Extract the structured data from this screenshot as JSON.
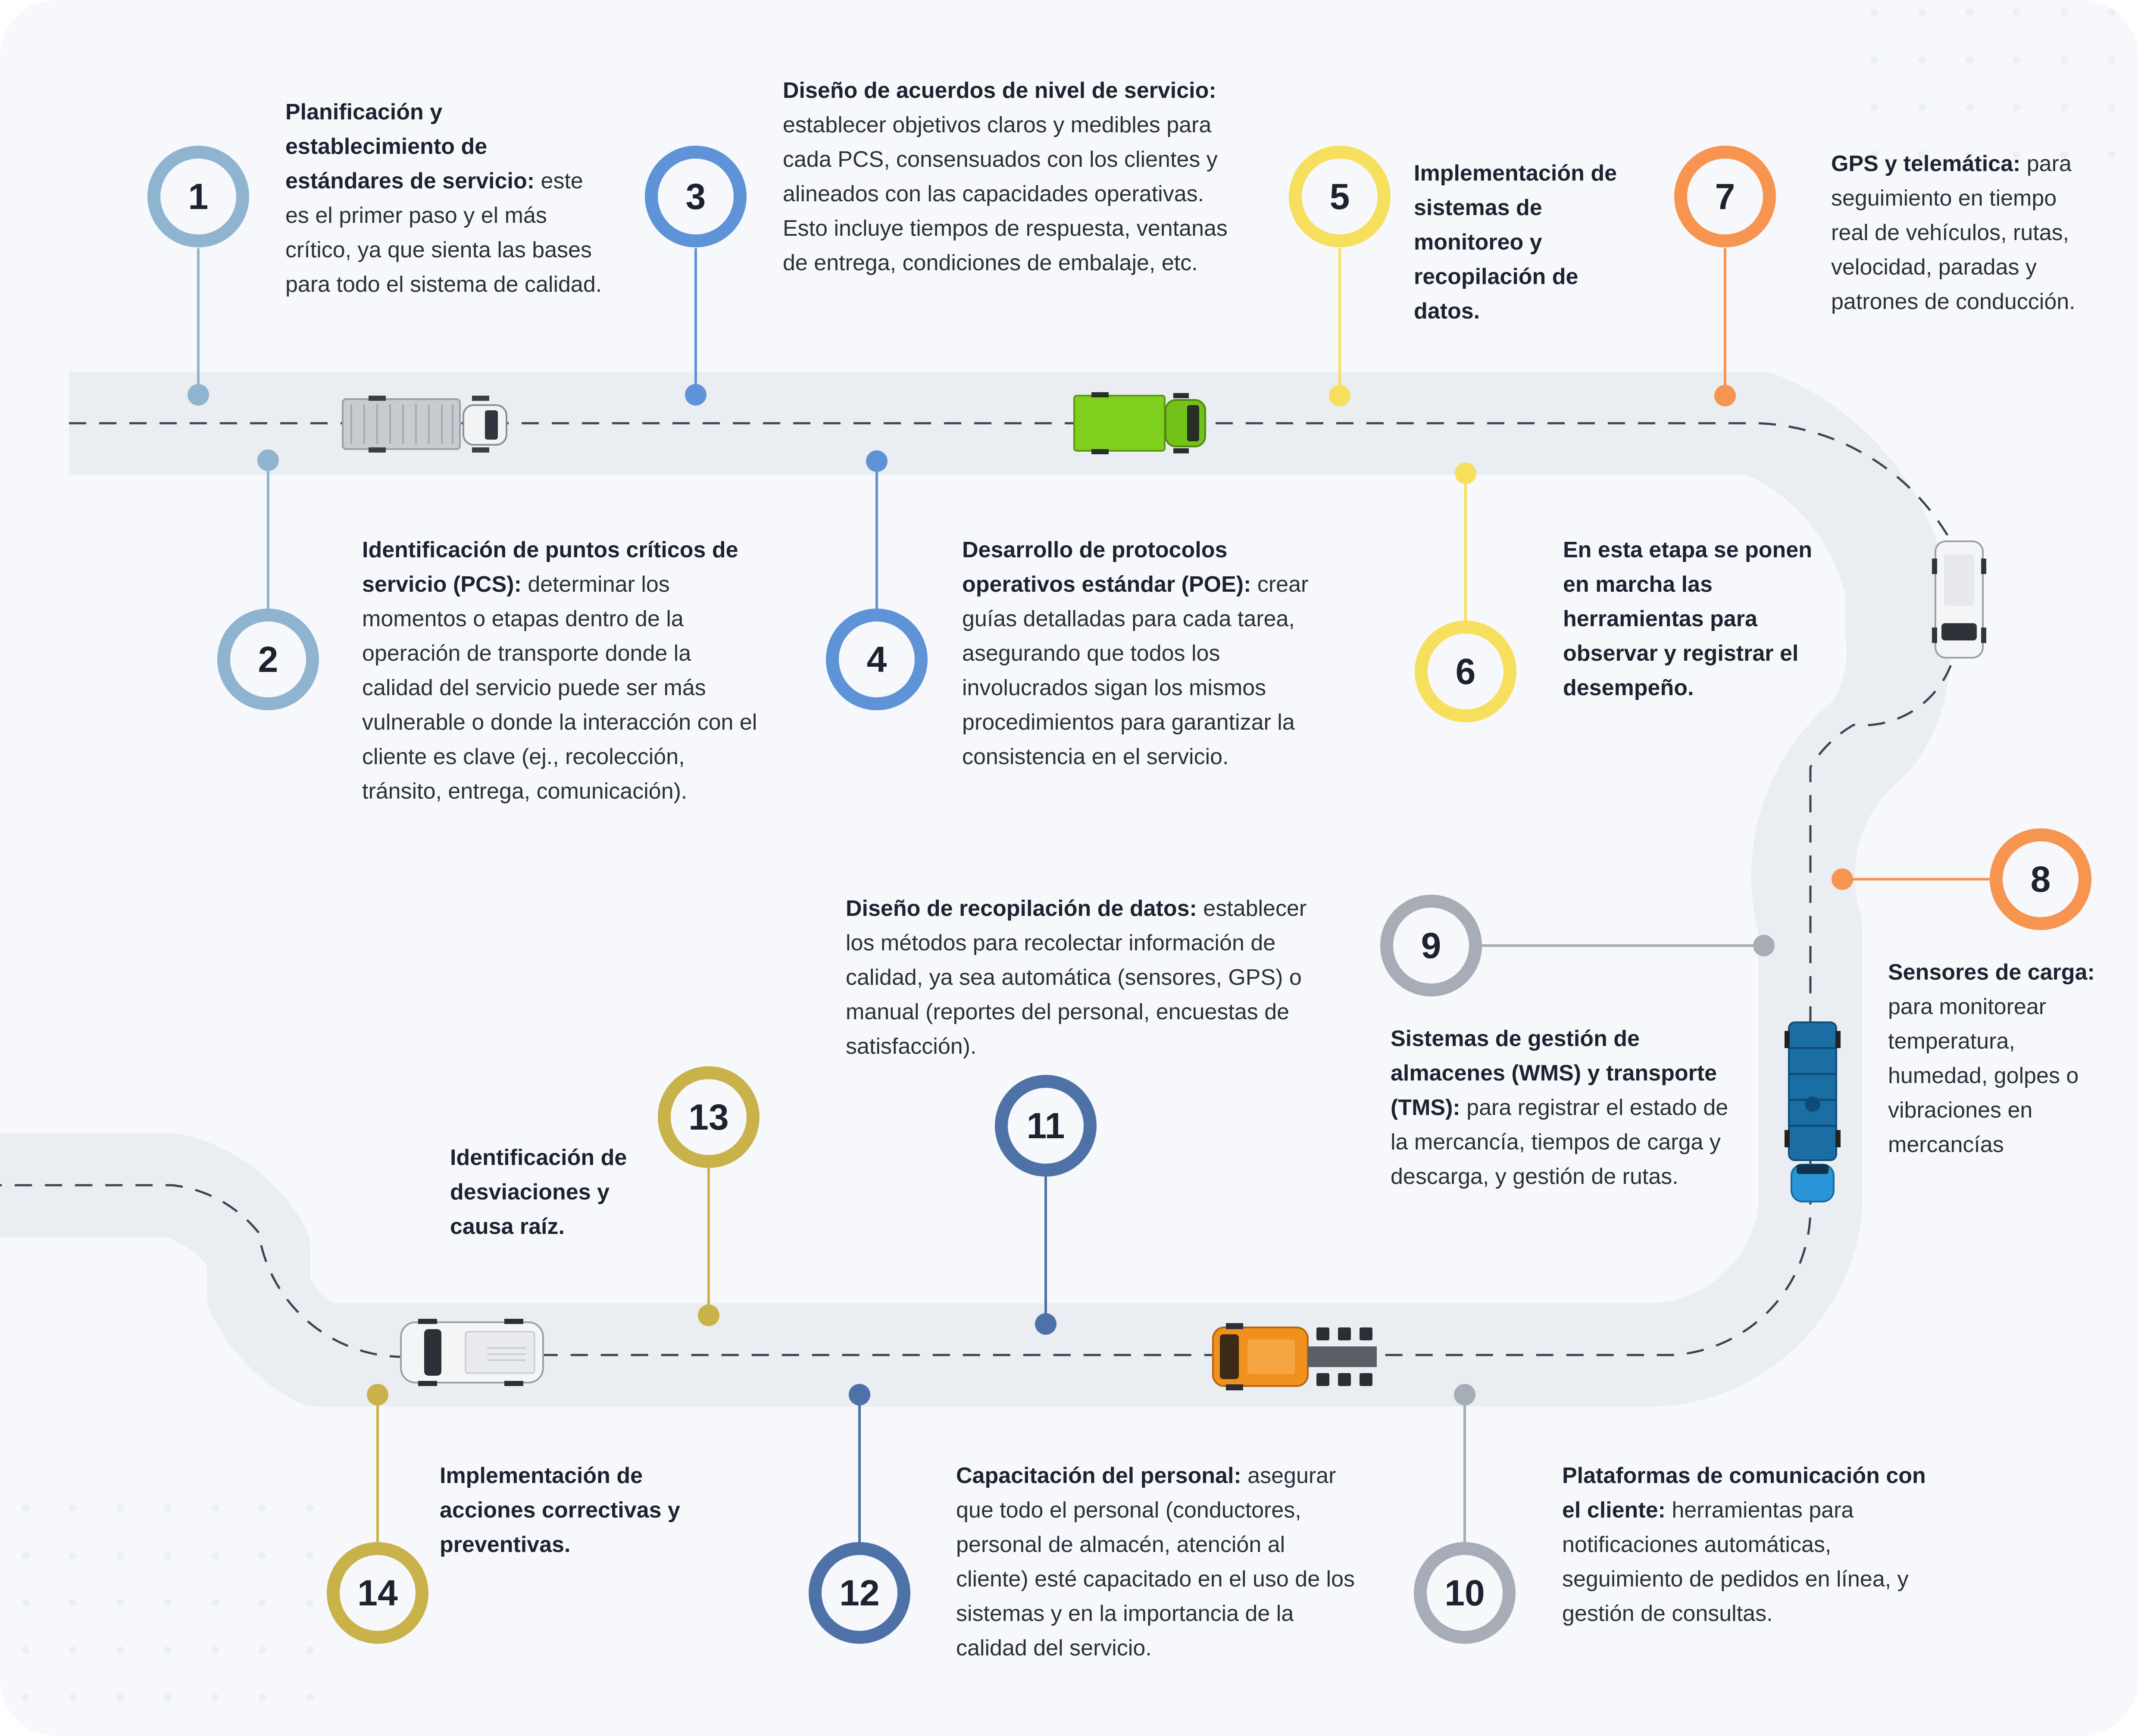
{
  "colors": {
    "step1": "#8fb4cf",
    "step2": "#8fb4cf",
    "step3": "#5f93d8",
    "step4": "#5f93d8",
    "step5": "#f7df5e",
    "step6": "#f7df5e",
    "step7": "#f7944f",
    "step8": "#f7944f",
    "step9": "#a6adb7",
    "step10": "#a6adb7",
    "step11": "#4e72a8",
    "step12": "#4e72a8",
    "step13": "#c9b24a",
    "step14": "#c9b24a",
    "road": "#eaedf1",
    "dash": "#3c4250"
  },
  "steps": [
    {
      "num": "1",
      "bold": "Planificación y establecimiento de estándares de servicio:",
      "text": " este es el primer paso y el más crítico, ya que sienta las bases para todo el sistema de calidad."
    },
    {
      "num": "2",
      "bold": "Identificación de puntos críticos de servicio (PCS):",
      "text": " determinar los momentos o etapas dentro de la operación de transporte donde la calidad del servicio puede ser más vulnerable o donde la interacción con el cliente es clave (ej., recolección, tránsito, entrega, comunicación)."
    },
    {
      "num": "3",
      "bold": "Diseño de acuerdos de nivel de servicio:",
      "text": " establecer objetivos claros y medibles para cada PCS, consensuados con los clientes y alineados con las capacidades operativas. Esto incluye tiempos de respuesta, ventanas de entrega, condiciones de embalaje, etc."
    },
    {
      "num": "4",
      "bold": "Desarrollo de protocolos operativos estándar (POE):",
      "text": " crear guías detalladas para cada tarea, asegurando que todos los involucrados sigan los mismos procedimientos para garantizar la consistencia en el servicio."
    },
    {
      "num": "5",
      "bold": "Implementación de sistemas de monitoreo y recopilación de datos.",
      "text": ""
    },
    {
      "num": "6",
      "bold": "En esta etapa se ponen en marcha las herramientas para observar y registrar el desempeño.",
      "text": ""
    },
    {
      "num": "7",
      "bold": "GPS y telemática:",
      "text": " para seguimiento en tiempo real de vehículos, rutas, velocidad, paradas y patrones de conducción."
    },
    {
      "num": "8",
      "bold": "Sensores de carga:",
      "text": " para monitorear temperatura, humedad, golpes o vibraciones en mercancías"
    },
    {
      "num": "9",
      "bold": "Sistemas de gestión de almacenes (WMS) y transporte (TMS):",
      "text": " para registrar el estado de la mercancía, tiempos de carga y descarga, y gestión de rutas."
    },
    {
      "num": "10",
      "bold": "Plataformas de comunicación con el cliente:",
      "text": " herramientas para notificaciones automáticas, seguimiento de pedidos en línea, y gestión de consultas."
    },
    {
      "num": "11",
      "bold": "Diseño de recopilación de datos:",
      "text": " establecer los métodos para recolectar información de calidad, ya sea automática (sensores, GPS) o manual (reportes del personal, encuestas de satisfacción)."
    },
    {
      "num": "12",
      "bold": "Capacitación del personal:",
      "text": " asegurar que todo el personal (conductores, personal de almacén, atención al cliente) esté capacitado en el uso de los sistemas y en la importancia de la calidad del servicio."
    },
    {
      "num": "13",
      "bold": "Identificación de desviaciones y causa raíz.",
      "text": ""
    },
    {
      "num": "14",
      "bold": "Implementación de acciones correctivas y preventivas.",
      "text": ""
    }
  ],
  "vehicles": [
    {
      "icon": "gray-box-truck-icon"
    },
    {
      "icon": "green-truck-icon"
    },
    {
      "icon": "white-van-icon"
    },
    {
      "icon": "blue-tanker-truck-icon"
    },
    {
      "icon": "orange-tractor-truck-icon"
    },
    {
      "icon": "white-pickup-truck-icon"
    }
  ]
}
